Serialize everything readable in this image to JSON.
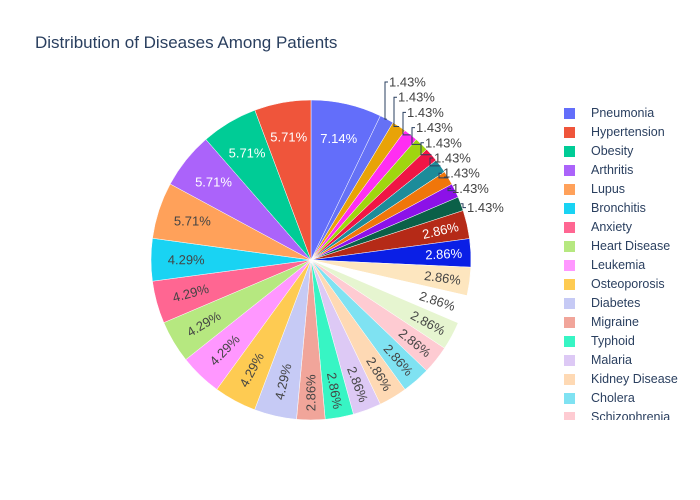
{
  "chart_data": {
    "type": "pie",
    "title": "Distribution of Diseases Among Patients",
    "slices": [
      {
        "label": "Pneumonia",
        "value": 7.14,
        "text": "7.14%",
        "color": "#636efa"
      },
      {
        "label": "",
        "value": 1.43,
        "text": "1.43%",
        "color": "#6571f5"
      },
      {
        "label": "",
        "value": 1.43,
        "text": "1.43%",
        "color": "#e8a307"
      },
      {
        "label": "",
        "value": 1.43,
        "text": "1.43%",
        "color": "#ff2ef2"
      },
      {
        "label": "",
        "value": 1.43,
        "text": "1.43%",
        "color": "#9fd60f"
      },
      {
        "label": "",
        "value": 1.43,
        "text": "1.43%",
        "color": "#f01545"
      },
      {
        "label": "",
        "value": 1.43,
        "text": "1.43%",
        "color": "#1d8c9a"
      },
      {
        "label": "",
        "value": 1.43,
        "text": "1.43%",
        "color": "#f0760a"
      },
      {
        "label": "",
        "value": 1.43,
        "text": "1.43%",
        "color": "#8c11e8"
      },
      {
        "label": "",
        "value": 1.43,
        "text": "1.43%",
        "color": "#0b6048"
      },
      {
        "label": "",
        "value": 2.86,
        "text": "2.86%",
        "color": "#b52a17"
      },
      {
        "label": "",
        "value": 2.86,
        "text": "2.86%",
        "color": "#0a1fe6"
      },
      {
        "label": "",
        "value": 2.86,
        "text": "2.86%",
        "color": "#fde6bf"
      },
      {
        "label": "",
        "value": 2.86,
        "text": "2.86%",
        "color": "#ffffff"
      },
      {
        "label": "",
        "value": 2.86,
        "text": "2.86%",
        "color": "#e6f5d0"
      },
      {
        "label": "Schizophrenia",
        "value": 2.86,
        "text": "2.86%",
        "color": "#fecbd2"
      },
      {
        "label": "Cholera",
        "value": 2.86,
        "text": "2.86%",
        "color": "#7fe2f2"
      },
      {
        "label": "Kidney Disease",
        "value": 2.86,
        "text": "2.86%",
        "color": "#fed9b4"
      },
      {
        "label": "Malaria",
        "value": 2.86,
        "text": "2.86%",
        "color": "#ddc9f5"
      },
      {
        "label": "Typhoid",
        "value": 2.86,
        "text": "2.86%",
        "color": "#37f5c4"
      },
      {
        "label": "Migraine",
        "value": 2.86,
        "text": "2.86%",
        "color": "#f1a59a"
      },
      {
        "label": "Diabetes",
        "value": 4.29,
        "text": "4.29%",
        "color": "#c6caf5"
      },
      {
        "label": "Osteoporosis",
        "value": 4.29,
        "text": "4.29%",
        "color": "#fecb52"
      },
      {
        "label": "Leukemia",
        "value": 4.29,
        "text": "4.29%",
        "color": "#ff97ff"
      },
      {
        "label": "Heart Disease",
        "value": 4.29,
        "text": "4.29%",
        "color": "#b6e880"
      },
      {
        "label": "Anxiety",
        "value": 4.29,
        "text": "4.29%",
        "color": "#ff6692"
      },
      {
        "label": "Bronchitis",
        "value": 4.29,
        "text": "4.29%",
        "color": "#19d3f3"
      },
      {
        "label": "Lupus",
        "value": 5.71,
        "text": "5.71%",
        "color": "#ffa15a"
      },
      {
        "label": "Arthritis",
        "value": 5.71,
        "text": "5.71%",
        "color": "#ab63fa"
      },
      {
        "label": "Obesity",
        "value": 5.71,
        "text": "5.71%",
        "color": "#00cc96"
      },
      {
        "label": "Hypertension",
        "value": 5.71,
        "text": "5.71%",
        "color": "#ef553b"
      }
    ],
    "legend": [
      {
        "label": "Pneumonia",
        "color": "#636efa"
      },
      {
        "label": "Hypertension",
        "color": "#ef553b"
      },
      {
        "label": "Obesity",
        "color": "#00cc96"
      },
      {
        "label": "Arthritis",
        "color": "#ab63fa"
      },
      {
        "label": "Lupus",
        "color": "#ffa15a"
      },
      {
        "label": "Bronchitis",
        "color": "#19d3f3"
      },
      {
        "label": "Anxiety",
        "color": "#ff6692"
      },
      {
        "label": "Heart Disease",
        "color": "#b6e880"
      },
      {
        "label": "Leukemia",
        "color": "#ff97ff"
      },
      {
        "label": "Osteoporosis",
        "color": "#fecb52"
      },
      {
        "label": "Diabetes",
        "color": "#c6caf5"
      },
      {
        "label": "Migraine",
        "color": "#f1a59a"
      },
      {
        "label": "Typhoid",
        "color": "#37f5c4"
      },
      {
        "label": "Malaria",
        "color": "#ddc9f5"
      },
      {
        "label": "Kidney Disease",
        "color": "#fed9b4"
      },
      {
        "label": "Cholera",
        "color": "#7fe2f2"
      },
      {
        "label": "Schizophrenia",
        "color": "#fecbd2"
      }
    ],
    "legend_placement": "right"
  }
}
